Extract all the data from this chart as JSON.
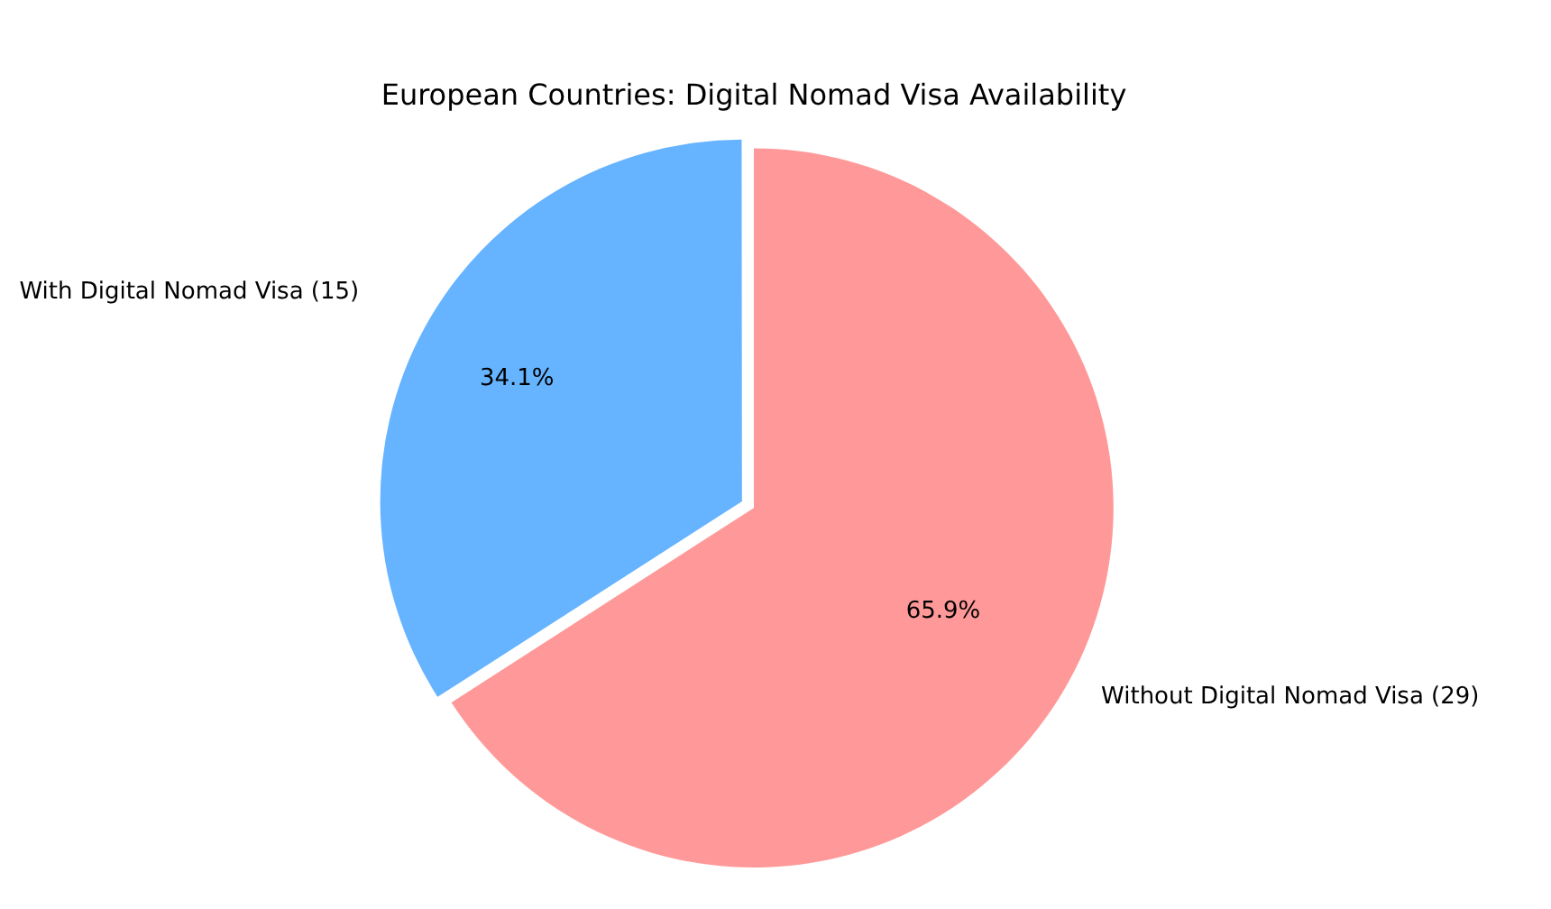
{
  "chart_data": {
    "type": "pie",
    "title": "European Countries: Digital Nomad Visa Availability",
    "categories": [
      "With Digital Nomad Visa (15)",
      "Without Digital Nomad Visa (29)"
    ],
    "values": [
      34.1,
      65.9
    ],
    "colors": [
      "#66b3ff",
      "#ff9999"
    ],
    "value_labels": [
      "34.1%",
      "65.9%"
    ],
    "legend": false
  }
}
